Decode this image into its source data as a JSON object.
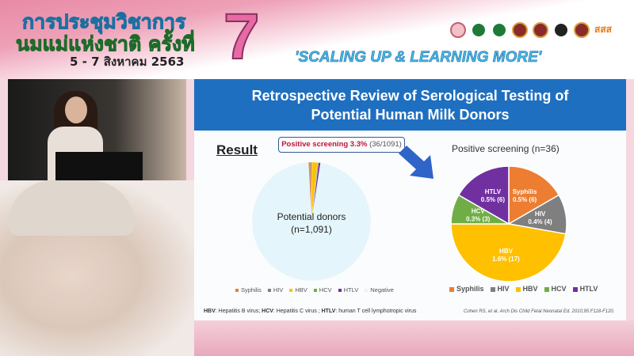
{
  "banner": {
    "title_line1": "การประชุมวิชาการ",
    "title_line2": "นมแม่แห่งชาติ ครั้งที่",
    "dates": "5 - 7 สิงหาคม 2563",
    "edition": "7",
    "slogan": "'SCALING UP & LEARNING MORE'",
    "logos": [
      "breastfeeding-logo",
      "moph-logo",
      "moph-logo-2",
      "royal-college-logo",
      "royal-college-logo-2",
      "university-logo",
      "thai-red-logo",
      "thaihealth-logo"
    ],
    "thaihealth_text": "สสส"
  },
  "slide": {
    "title_line1": "Retrospective Review of Serological Testing of",
    "title_line2": "Potential Human Milk Donors",
    "result_heading": "Result",
    "callout_bold": "Positive screening 3.3%",
    "callout_rest": "(36/1091)",
    "left_center_label_1": "Potential donors",
    "left_center_label_2": "(n=1,091)",
    "footnote": [
      {
        "b": "HBV",
        "t": ": Hepatitis B virus; "
      },
      {
        "b": "HCV",
        "t": ": Hepatitis C virus ; "
      },
      {
        "b": "HTLV",
        "t": ": human T cell lymphotropic virus"
      }
    ],
    "citation": "Cohen RS, et al. Arch Dis Child Fetal Neonatal Ed. 2010;95:F118-F120."
  },
  "colors": {
    "Syphilis": "#ed7d31",
    "HIV": "#7f7f7f",
    "HBV": "#ffc000",
    "HCV": "#70ad47",
    "HTLV": "#7030a0",
    "Negative": "#e4f5fb",
    "title_bar": "#1f6fc0",
    "arrow": "#2f64c8"
  },
  "chart_data": [
    {
      "type": "pie",
      "title": "",
      "center_label": "Potential donors (n=1,091)",
      "categories": [
        "Syphilis",
        "HIV",
        "HBV",
        "HCV",
        "HTLV",
        "Negative"
      ],
      "values": [
        6,
        4,
        17,
        3,
        6,
        1055
      ],
      "legend": "bottom"
    },
    {
      "type": "pie",
      "title": "Positive screening (n=36)",
      "categories": [
        "Syphilis",
        "HIV",
        "HBV",
        "HCV",
        "HTLV"
      ],
      "values": [
        6,
        4,
        17,
        3,
        6
      ],
      "data_labels": [
        "0.5% (6)",
        "0.4% (4)",
        "1.6% (17)",
        "0.3% (3)",
        "0.5% (6)"
      ],
      "legend": "bottom"
    }
  ]
}
